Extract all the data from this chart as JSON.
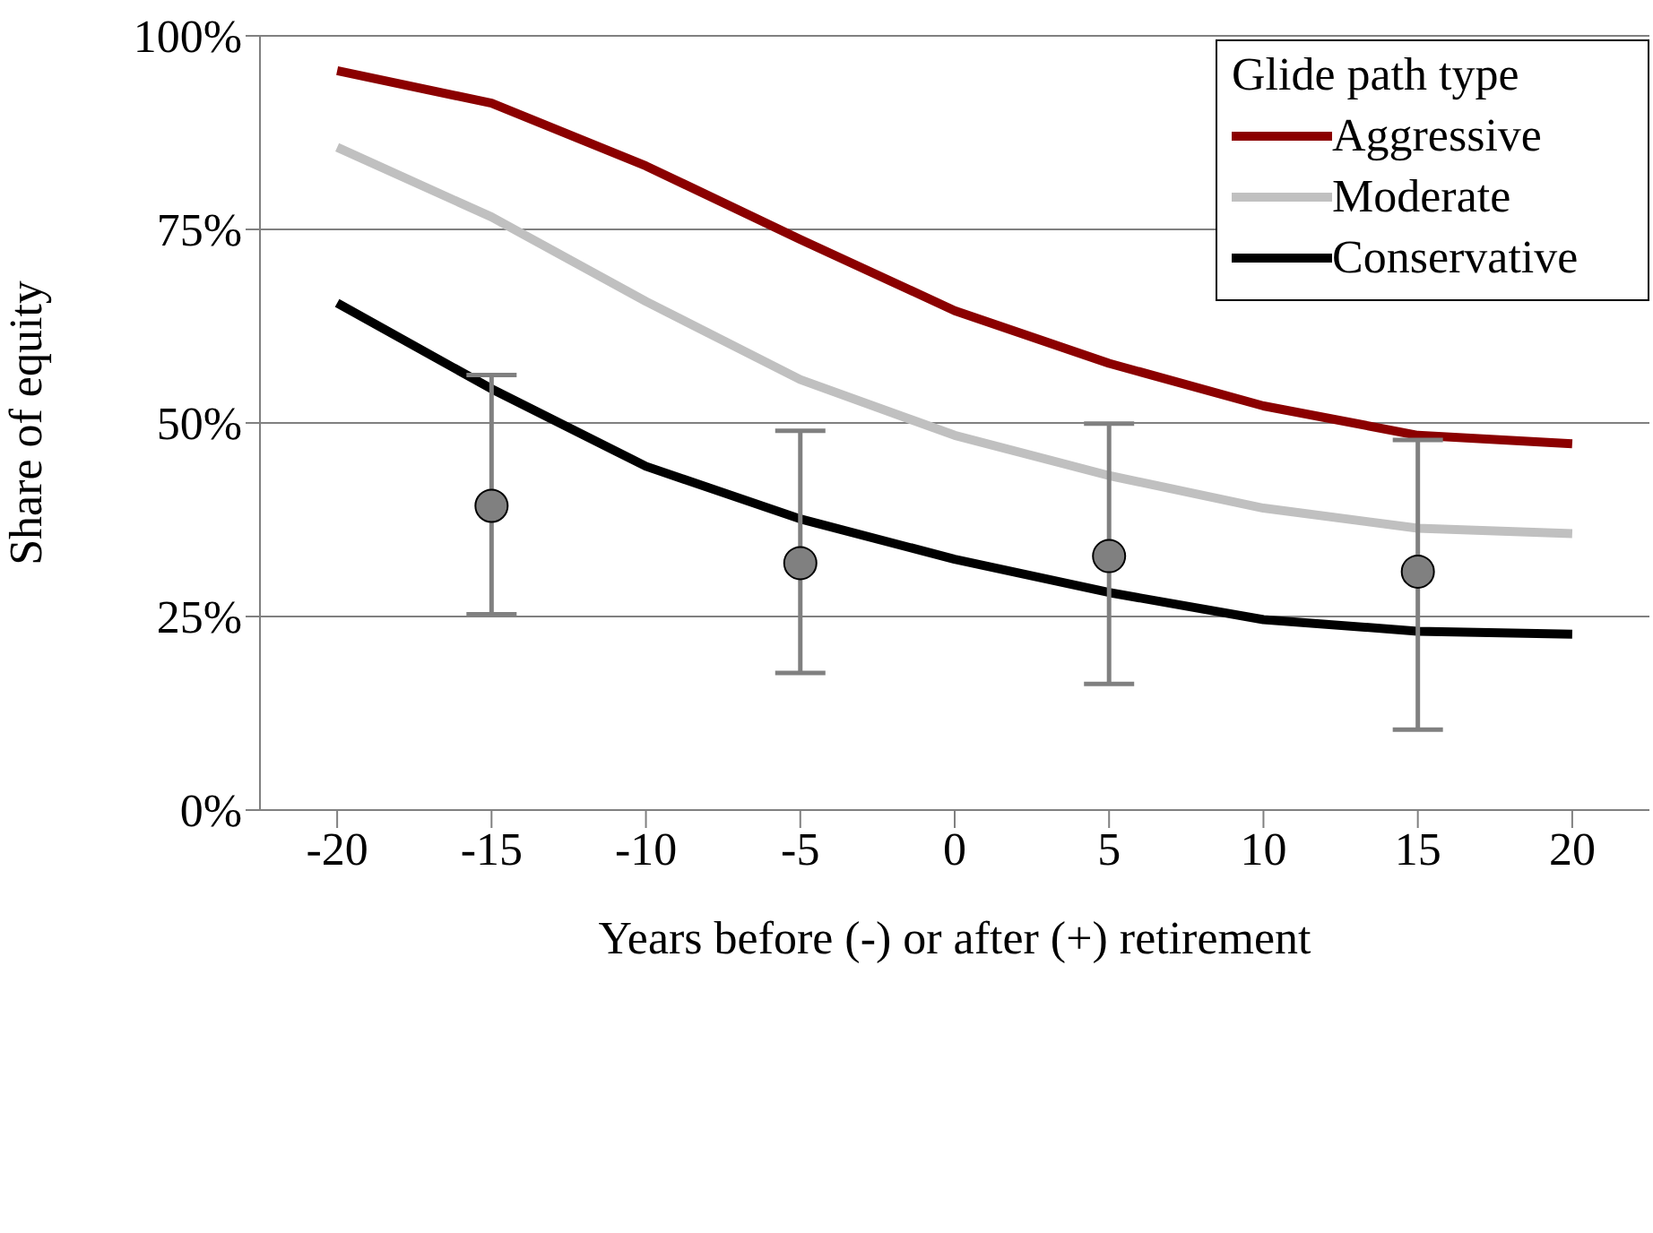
{
  "chart_data": {
    "type": "line",
    "xlabel": "Years before (-) or after (+) retirement",
    "ylabel": "Share of equity",
    "legend_title": "Glide path type",
    "x": [
      -20,
      -15,
      -10,
      -5,
      0,
      5,
      10,
      15,
      20
    ],
    "series": [
      {
        "name": "Aggressive",
        "color": "#8b0000",
        "values": [
          95.5,
          91.3,
          83.2,
          73.7,
          64.5,
          57.7,
          52.2,
          48.4,
          47.3
        ]
      },
      {
        "name": "Moderate",
        "color": "#c0c0c0",
        "values": [
          85.6,
          76.6,
          65.7,
          55.6,
          48.4,
          43.2,
          39.0,
          36.4,
          35.7
        ]
      },
      {
        "name": "Conservative",
        "color": "#000000",
        "values": [
          65.5,
          54.4,
          44.4,
          37.6,
          32.4,
          28.1,
          24.6,
          23.1,
          22.7
        ]
      },
      {
        "type": "scatter",
        "color": "#808080",
        "marker": "circle",
        "x": [
          -15,
          -5,
          5,
          15
        ],
        "values": [
          39.3,
          31.9,
          32.8,
          30.8
        ],
        "errors": [
          [
            25.3,
            56.2
          ],
          [
            17.7,
            49.0
          ],
          [
            16.3,
            49.9
          ],
          [
            10.4,
            47.8
          ]
        ]
      }
    ],
    "xlim": [
      -22.5,
      22.5
    ],
    "xticks": [
      -20,
      -15,
      -10,
      -5,
      0,
      5,
      10,
      15,
      20
    ],
    "ylim": [
      0,
      100
    ],
    "yticks": [
      {
        "value": 0,
        "label": "0%"
      },
      {
        "value": 25,
        "label": "25%"
      },
      {
        "value": 50,
        "label": "50%"
      },
      {
        "value": 75,
        "label": "75%"
      },
      {
        "value": 100,
        "label": "100%"
      }
    ],
    "grid": "y",
    "legend": "top right",
    "marker": "none",
    "line_style": "solid"
  }
}
